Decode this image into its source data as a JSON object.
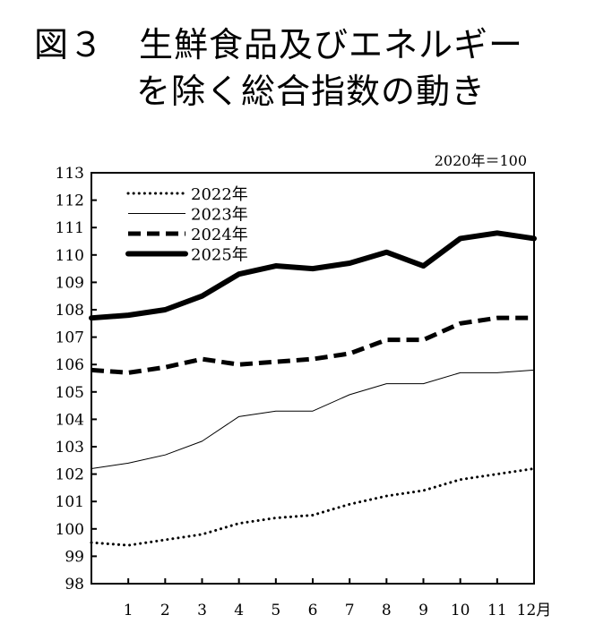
{
  "title": {
    "line1": "図３　生鮮食品及びエネルギー",
    "line2": "を除く総合指数の動き"
  },
  "chart_data": {
    "type": "line",
    "title": "図３　生鮮食品及びエネルギーを除く総合指数の動き",
    "note": "2020年＝100",
    "xlabel": "",
    "ylabel": "",
    "x": [
      0,
      1,
      2,
      3,
      4,
      5,
      6,
      7,
      8,
      9,
      10,
      11,
      12
    ],
    "x_tick_labels": [
      "1",
      "2",
      "3",
      "4",
      "5",
      "6",
      "7",
      "8",
      "9",
      "10",
      "11",
      "12月"
    ],
    "ylim": [
      98,
      113
    ],
    "y_ticks": [
      98,
      99,
      100,
      101,
      102,
      103,
      104,
      105,
      106,
      107,
      108,
      109,
      110,
      111,
      112,
      113
    ],
    "grid": false,
    "legend_position": "top-left",
    "series": [
      {
        "name": "2022年",
        "style": "dotted",
        "values": [
          99.5,
          99.4,
          99.6,
          99.8,
          100.2,
          100.4,
          100.5,
          100.9,
          101.2,
          101.4,
          101.8,
          102.0,
          102.2
        ]
      },
      {
        "name": "2023年",
        "style": "thin",
        "values": [
          102.2,
          102.4,
          102.7,
          103.2,
          104.1,
          104.3,
          104.3,
          104.9,
          105.3,
          105.3,
          105.7,
          105.7,
          105.8
        ]
      },
      {
        "name": "2024年",
        "style": "dashed",
        "values": [
          105.8,
          105.7,
          105.9,
          106.2,
          106.0,
          106.1,
          106.2,
          106.4,
          106.9,
          106.9,
          107.5,
          107.7,
          107.7
        ]
      },
      {
        "name": "2025年",
        "style": "thick",
        "values": [
          107.7,
          107.8,
          108.0,
          108.5,
          109.3,
          109.6,
          109.5,
          109.7,
          110.1,
          109.6,
          110.6,
          110.8,
          110.6
        ]
      }
    ]
  }
}
